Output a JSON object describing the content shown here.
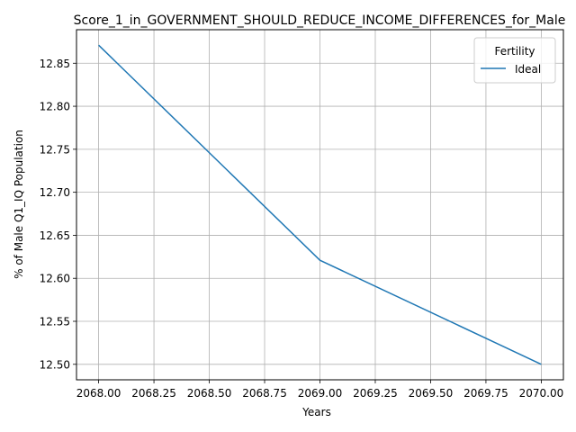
{
  "chart_data": {
    "type": "line",
    "title": "Score_1_in_GOVERNMENT_SHOULD_REDUCE_INCOME_DIFFERENCES_for_Male",
    "xlabel": "Years",
    "ylabel": "% of Male Q1_IQ Population",
    "xlim": [
      2067.9,
      2070.1
    ],
    "ylim": [
      12.482,
      12.889
    ],
    "xticks": [
      "2068.00",
      "2068.25",
      "2068.50",
      "2068.75",
      "2069.00",
      "2069.25",
      "2069.50",
      "2069.75",
      "2070.00"
    ],
    "xtick_values": [
      2068.0,
      2068.25,
      2068.5,
      2068.75,
      2069.0,
      2069.25,
      2069.5,
      2069.75,
      2070.0
    ],
    "yticks": [
      "12.50",
      "12.55",
      "12.60",
      "12.65",
      "12.70",
      "12.75",
      "12.80",
      "12.85"
    ],
    "ytick_values": [
      12.5,
      12.55,
      12.6,
      12.65,
      12.7,
      12.75,
      12.8,
      12.85
    ],
    "grid": true,
    "legend": {
      "title": "Fertility",
      "placement": "top-right"
    },
    "series": [
      {
        "name": "Ideal",
        "color": "#1f77b4",
        "x": [
          2068,
          2069,
          2070
        ],
        "y": [
          12.871,
          12.621,
          12.5
        ]
      }
    ]
  }
}
